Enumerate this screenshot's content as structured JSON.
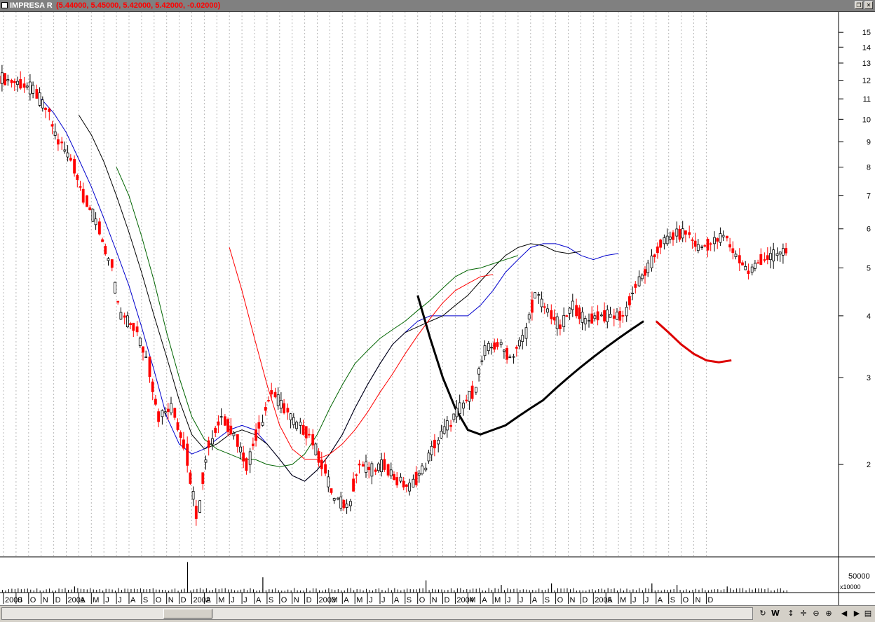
{
  "window": {
    "ticker": "IMPRESA R",
    "values_label": "(5.44000, 5.45000, 5.42000, 5.42000, -0.02000)",
    "restore_icon": "restore-icon",
    "close_icon": "close-icon"
  },
  "price_axis": {
    "scale": "log",
    "ticks": [
      "15",
      "14",
      "13",
      "12",
      "11",
      "10",
      "9",
      "8",
      "7",
      "6",
      "5",
      "4",
      "3",
      "2"
    ]
  },
  "volume_axis": {
    "tick": "50000",
    "multiplier": "x10000"
  },
  "time_axis": {
    "labels": [
      "2000",
      "S",
      "O",
      "N",
      "D",
      "2001",
      "A",
      "M",
      "J",
      "J",
      "A",
      "S",
      "O",
      "N",
      "D",
      "2002",
      "A",
      "M",
      "J",
      "J",
      "A",
      "S",
      "O",
      "N",
      "D",
      "2003",
      "M",
      "A",
      "M",
      "J",
      "J",
      "A",
      "S",
      "O",
      "N",
      "D",
      "2004",
      "M",
      "A",
      "M",
      "J",
      "J",
      "A",
      "S",
      "O",
      "N",
      "D",
      "2005",
      "A",
      "M",
      "J",
      "J",
      "A",
      "S",
      "O",
      "N",
      "D"
    ]
  },
  "colors": {
    "up": "#000000",
    "down": "#ff0000",
    "ma1": "#0000cc",
    "ma2": "#000000",
    "ma3": "#006400",
    "ma4": "#ff0000",
    "ma5": "#000000",
    "ma6": "#dd0000",
    "grid": "#b8b8b8"
  },
  "chart_data": {
    "type": "candlestick",
    "x_range": [
      "2000-07",
      "2005-12"
    ],
    "y_scale": "log",
    "ylim": [
      1.3,
      16.5
    ],
    "last_ohlc": {
      "open": 5.44,
      "high": 5.45,
      "low": 5.42,
      "close": 5.42,
      "change": -0.02
    },
    "price_series": {
      "name": "IMPRESA R",
      "dates": [
        "2000-07",
        "2000-08",
        "2000-09",
        "2000-10",
        "2000-11",
        "2000-12",
        "2001-01",
        "2001-02",
        "2001-03",
        "2001-04",
        "2001-05",
        "2001-06",
        "2001-07",
        "2001-08",
        "2001-09",
        "2001-10",
        "2001-11",
        "2001-12",
        "2002-01",
        "2002-02",
        "2002-03",
        "2002-04",
        "2002-05",
        "2002-06",
        "2002-07",
        "2002-08",
        "2002-09",
        "2002-10",
        "2002-11",
        "2002-12",
        "2003-01",
        "2003-02",
        "2003-03",
        "2003-04",
        "2003-05",
        "2003-06",
        "2003-07",
        "2003-08",
        "2003-09",
        "2003-10",
        "2003-11",
        "2003-12",
        "2004-01",
        "2004-02",
        "2004-03",
        "2004-04",
        "2004-05",
        "2004-06",
        "2004-07",
        "2004-08",
        "2004-09",
        "2004-10",
        "2004-11",
        "2004-12",
        "2005-01",
        "2005-02",
        "2005-03",
        "2005-04",
        "2005-05",
        "2005-06",
        "2005-07",
        "2005-08",
        "2005-09"
      ],
      "close": [
        12.0,
        11.8,
        11.5,
        10.5,
        9.0,
        8.3,
        7.0,
        6.2,
        5.2,
        4.0,
        3.8,
        3.3,
        2.5,
        2.6,
        2.2,
        1.6,
        2.2,
        2.5,
        2.3,
        2.0,
        2.4,
        2.8,
        2.6,
        2.4,
        2.3,
        2.0,
        1.7,
        1.65,
        2.0,
        1.95,
        2.0,
        1.85,
        1.8,
        1.95,
        2.2,
        2.4,
        2.6,
        2.8,
        3.4,
        3.5,
        3.3,
        3.6,
        4.4,
        4.1,
        3.8,
        4.2,
        3.9,
        4.0,
        4.0,
        4.0,
        4.6,
        5.0,
        5.6,
        5.8,
        5.9,
        5.5,
        5.6,
        5.8,
        5.3,
        4.9,
        5.2,
        5.3,
        5.42
      ]
    },
    "moving_averages": [
      {
        "color": "#0000cc",
        "start": "2000-10",
        "values": [
          11.0,
          10.3,
          9.4,
          8.3,
          7.3,
          6.3,
          5.4,
          4.6,
          3.8,
          3.1,
          2.5,
          2.2,
          2.1,
          2.15,
          2.25,
          2.35,
          2.4,
          2.35,
          2.2,
          2.05,
          1.9,
          1.85,
          1.95,
          2.1,
          2.3,
          2.6,
          2.9,
          3.2,
          3.5,
          3.7,
          3.9,
          4.0,
          4.0,
          4.0,
          4.0,
          4.2,
          4.5,
          4.9,
          5.2,
          5.5,
          5.6,
          5.6,
          5.5,
          5.3,
          5.2,
          5.3,
          5.35
        ]
      },
      {
        "color": "#000000",
        "start": "2001-01",
        "values": [
          10.2,
          9.3,
          8.2,
          7.0,
          5.9,
          4.9,
          4.0,
          3.3,
          2.7,
          2.3,
          2.15,
          2.2,
          2.3,
          2.35,
          2.3,
          2.2,
          2.05,
          1.9,
          1.85,
          1.95,
          2.1,
          2.3,
          2.6,
          2.9,
          3.2,
          3.5,
          3.7,
          3.8,
          3.9,
          4.0,
          4.2,
          4.4,
          4.7,
          5.0,
          5.3,
          5.5,
          5.6,
          5.55,
          5.4,
          5.35,
          5.4
        ]
      },
      {
        "color": "#006400",
        "start": "2001-04",
        "values": [
          8.0,
          7.0,
          5.8,
          4.7,
          3.7,
          3.0,
          2.5,
          2.25,
          2.15,
          2.1,
          2.05,
          2.05,
          2.0,
          1.98,
          2.0,
          2.1,
          2.3,
          2.6,
          2.9,
          3.2,
          3.4,
          3.6,
          3.75,
          3.9,
          4.1,
          4.3,
          4.55,
          4.8,
          4.95,
          5.0,
          5.1,
          5.2,
          5.3
        ]
      },
      {
        "color": "#ff0000",
        "start": "2002-01",
        "values": [
          5.5,
          4.5,
          3.6,
          2.9,
          2.4,
          2.15,
          2.05,
          2.05,
          2.1,
          2.2,
          2.35,
          2.55,
          2.8,
          3.05,
          3.35,
          3.65,
          3.95,
          4.25,
          4.5,
          4.65,
          4.8,
          4.85
        ]
      },
      {
        "color": "#000000",
        "start": "2003-04",
        "values": [
          4.4,
          3.6,
          3.0,
          2.6,
          2.35,
          2.3,
          2.35,
          2.4,
          2.5,
          2.6,
          2.7,
          2.85,
          3.0,
          3.15,
          3.3,
          3.45,
          3.6,
          3.75,
          3.9
        ]
      },
      {
        "color": "#dd0000",
        "start": "2004-11",
        "values": [
          3.9,
          3.7,
          3.5,
          3.35,
          3.25,
          3.22,
          3.25
        ]
      }
    ],
    "volume_series": {
      "name": "Volume",
      "dates": [
        "2000-07",
        "2001-01",
        "2001-10",
        "2002-04",
        "2003-05",
        "2003-11",
        "2004-03",
        "2004-11",
        "2005-01",
        "2005-05"
      ],
      "values": [
        80000,
        20000,
        100000,
        50000,
        40000,
        25000,
        30000,
        30000,
        25000,
        20000
      ]
    }
  }
}
